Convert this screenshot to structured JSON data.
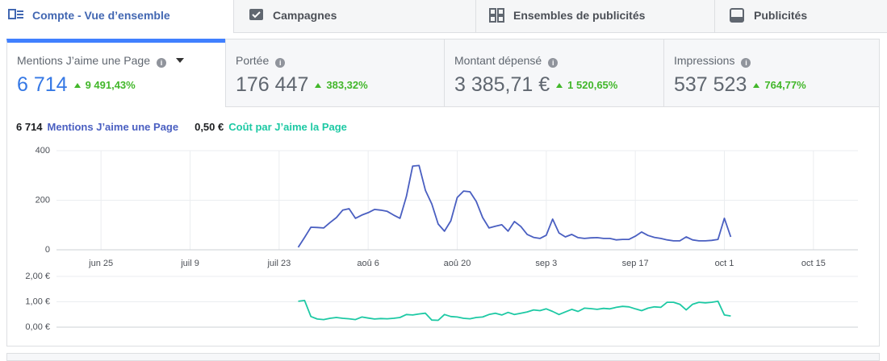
{
  "tabs": [
    "Compte - Vue d’ensemble",
    "Campagnes",
    "Ensembles de publicités",
    "Publicités"
  ],
  "metrics": [
    {
      "label": "Mentions J’aime une Page",
      "value": "6 714",
      "change": "9 491,43%"
    },
    {
      "label": "Portée",
      "value": "176 447",
      "change": "383,32%"
    },
    {
      "label": "Montant dépensé",
      "value": "3 385,71 €",
      "change": "1 520,65%"
    },
    {
      "label": "Impressions",
      "value": "537 523",
      "change": "764,77%"
    }
  ],
  "chart_data": [
    {
      "type": "line",
      "x": [
        31,
        32,
        33,
        34,
        35,
        36,
        37,
        38,
        39,
        40,
        41,
        42,
        43,
        44,
        45,
        46,
        47,
        48,
        49,
        50,
        51,
        52,
        53,
        54,
        55,
        56,
        57,
        58,
        59,
        60,
        61,
        62,
        63,
        64,
        65,
        66,
        67,
        68,
        69,
        70,
        71,
        72,
        73,
        74,
        75,
        76,
        77,
        78,
        79,
        80,
        81,
        82,
        83,
        84,
        85,
        86,
        87,
        88,
        89,
        90,
        91,
        92,
        93,
        94,
        95,
        96,
        97,
        98,
        99
      ],
      "series": [
        {
          "name": "Mentions J’aime une Page",
          "color": "#4a5fc1",
          "values": [
            10,
            50,
            91,
            90,
            88,
            110,
            130,
            160,
            166,
            127,
            140,
            150,
            163,
            160,
            155,
            140,
            127,
            215,
            338,
            340,
            240,
            185,
            104,
            75,
            117,
            211,
            237,
            234,
            195,
            130,
            88,
            95,
            101,
            75,
            114,
            94,
            62,
            50,
            46,
            59,
            124,
            68,
            52,
            62,
            49,
            46,
            48,
            49,
            46,
            46,
            40,
            42,
            42,
            55,
            72,
            58,
            50,
            46,
            40,
            36,
            36,
            52,
            40,
            36,
            36,
            38,
            42,
            127,
            52
          ]
        }
      ],
      "xlim": [
        -7,
        119
      ],
      "xticks": [
        {
          "value": 0,
          "label": "jun 25"
        },
        {
          "value": 14,
          "label": "juil 9"
        },
        {
          "value": 28,
          "label": "juil 23"
        },
        {
          "value": 42,
          "label": "aoû 6"
        },
        {
          "value": 56,
          "label": "aoû 20"
        },
        {
          "value": 70,
          "label": "sep 3"
        },
        {
          "value": 84,
          "label": "sep 17"
        },
        {
          "value": 98,
          "label": "oct 1"
        },
        {
          "value": 112,
          "label": "oct 15"
        }
      ],
      "ylim": [
        0,
        400
      ],
      "yticks": [
        0,
        200,
        400
      ],
      "grid": true
    },
    {
      "type": "line",
      "summary": "0,50 €",
      "x": [
        31,
        32,
        33,
        34,
        35,
        36,
        37,
        38,
        39,
        40,
        41,
        42,
        43,
        44,
        45,
        46,
        47,
        48,
        49,
        50,
        51,
        52,
        53,
        54,
        55,
        56,
        57,
        58,
        59,
        60,
        61,
        62,
        63,
        64,
        65,
        66,
        67,
        68,
        69,
        70,
        71,
        72,
        73,
        74,
        75,
        76,
        77,
        78,
        79,
        80,
        81,
        82,
        83,
        84,
        85,
        86,
        87,
        88,
        89,
        90,
        91,
        92,
        93,
        94,
        95,
        96,
        97,
        98,
        99
      ],
      "series": [
        {
          "name": "Coût par J’aime la Page",
          "color": "#1dc9a4",
          "values": [
            1.02,
            1.05,
            0.42,
            0.32,
            0.3,
            0.35,
            0.38,
            0.35,
            0.33,
            0.3,
            0.4,
            0.36,
            0.32,
            0.34,
            0.33,
            0.35,
            0.38,
            0.5,
            0.48,
            0.52,
            0.55,
            0.28,
            0.27,
            0.5,
            0.42,
            0.4,
            0.35,
            0.33,
            0.38,
            0.4,
            0.5,
            0.55,
            0.48,
            0.58,
            0.5,
            0.55,
            0.6,
            0.68,
            0.65,
            0.72,
            0.62,
            0.5,
            0.6,
            0.7,
            0.62,
            0.75,
            0.73,
            0.7,
            0.74,
            0.72,
            0.78,
            0.82,
            0.8,
            0.72,
            0.65,
            0.75,
            0.8,
            0.78,
            0.98,
            0.98,
            0.9,
            0.68,
            0.9,
            0.98,
            0.96,
            0.98,
            1.02,
            0.48,
            0.44
          ]
        }
      ],
      "xlim": [
        -7,
        119
      ],
      "ylim": [
        0,
        2
      ],
      "yticks": [
        {
          "value": 0,
          "label": "0,00 €"
        },
        {
          "value": 1,
          "label": "1,00 €"
        },
        {
          "value": 2,
          "label": "2,00 €"
        }
      ],
      "grid": true
    }
  ]
}
